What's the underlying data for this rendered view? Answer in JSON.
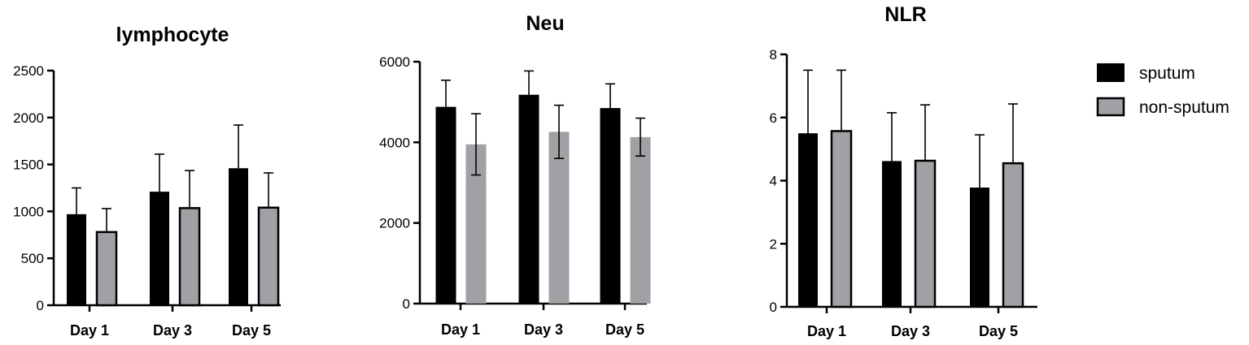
{
  "colors": {
    "sputum": "#000000",
    "non_sputum": "#a0a0a5",
    "axis": "#000000"
  },
  "legend": {
    "items": [
      {
        "label": "sputum",
        "color": "#000000"
      },
      {
        "label": "non-sputum",
        "color": "#a0a0a5"
      }
    ],
    "placement": "right"
  },
  "chart_data": [
    {
      "type": "bar",
      "title": "lymphocyte",
      "categories": [
        "Day 1",
        "Day 3",
        "Day 5"
      ],
      "ylim": [
        0,
        2500
      ],
      "yticks": [
        "0",
        "500",
        "1000",
        "1500",
        "2000",
        "2500"
      ],
      "error_bars": "upper",
      "series": [
        {
          "name": "sputum",
          "values": [
            970,
            1210,
            1460
          ],
          "errors": [
            280,
            400,
            460
          ]
        },
        {
          "name": "non-sputum",
          "values": [
            780,
            1035,
            1040
          ],
          "errors": [
            250,
            400,
            370
          ]
        }
      ]
    },
    {
      "type": "bar",
      "title": "Neu",
      "categories": [
        "Day 1",
        "Day 3",
        "Day 5"
      ],
      "ylim": [
        0,
        6000
      ],
      "yticks": [
        "0",
        "2000",
        "4000",
        "6000"
      ],
      "error_bars": "both",
      "series": [
        {
          "name": "sputum",
          "values": [
            4880,
            5180,
            4850
          ],
          "errors": [
            660,
            590,
            600
          ]
        },
        {
          "name": "non-sputum",
          "values": [
            3950,
            4260,
            4130
          ],
          "errors": [
            760,
            660,
            470
          ]
        }
      ]
    },
    {
      "type": "bar",
      "title": "NLR",
      "categories": [
        "Day 1",
        "Day 3",
        "Day 5"
      ],
      "ylim": [
        0,
        8
      ],
      "yticks": [
        "0",
        "2",
        "4",
        "6",
        "8"
      ],
      "error_bars": "upper",
      "series": [
        {
          "name": "sputum",
          "values": [
            5.5,
            4.62,
            3.78
          ],
          "errors": [
            2.0,
            1.53,
            1.67
          ]
        },
        {
          "name": "non-sputum",
          "values": [
            5.57,
            4.63,
            4.55
          ],
          "errors": [
            1.93,
            1.77,
            1.88
          ]
        }
      ]
    }
  ]
}
